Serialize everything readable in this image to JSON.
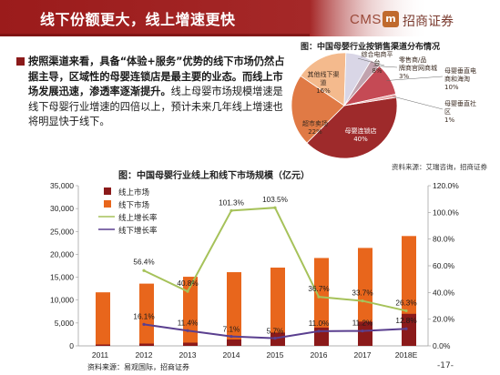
{
  "header": {
    "title": "线下份额更大，线上增速更快",
    "title_bg": "#9b1b1b",
    "logo_text": "CMS",
    "logo_badge": "m",
    "logo_name": "招商证券"
  },
  "bullet": {
    "part1_bold": "按照渠道来看，具备“体验+服务”优势的线下市场仍然占据主导，区域性的母婴连锁店是最主要的业态。而线上市场发展迅速，渗透率逐渐提升。",
    "part2": "线上母婴市场规模增速是线下母婴行业增速的四倍以上，预计未来几年线上增速也将明显快于线下。"
  },
  "pie": {
    "title": "图：中国母婴行业按销售渠道分布情况",
    "source": "资料来源：艾瑞咨询，招商证券",
    "chart_data": {
      "type": "pie",
      "title": "图：中国母婴行业按销售渠道分布情况",
      "slices": [
        {
          "label": "母婴连锁店",
          "value": 40,
          "display": "40%",
          "color": "#9e2a2b"
        },
        {
          "label": "超市卖场",
          "value": 22,
          "display": "22%",
          "color": "#e07a45"
        },
        {
          "label": "其他线下渠道",
          "value": 16,
          "display": "16%",
          "color": "#f4ba8d"
        },
        {
          "label": "综合电商平台",
          "value": 8,
          "display": "8%",
          "color": "#d9d6e6"
        },
        {
          "label": "零售商/品牌商官网商城",
          "value": 3,
          "display": "3%",
          "color": "#c1a3ae"
        },
        {
          "label": "母婴垂直电商和海淘",
          "value": 10,
          "display": "10%",
          "color": "#c54a55"
        },
        {
          "label": "母婴垂直社区",
          "value": 1,
          "display": "1%",
          "color": "#e9a7a7"
        }
      ]
    }
  },
  "bars": {
    "title": "图：中国母婴行业线上和线下市场规模（亿元）",
    "source": "资料来源：易观国际，招商证券",
    "legend": {
      "online": "线上市场",
      "offline": "线下市场",
      "online_growth": "线上增长率",
      "offline_growth": "线下增长率"
    },
    "chart_data": {
      "type": "bar",
      "title": "图：中国母婴行业线上和线下市场规模（亿元）",
      "categories": [
        "2011",
        "2012",
        "2013",
        "2014",
        "2015",
        "2016",
        "2017",
        "2018E"
      ],
      "left_axis": {
        "min": 0,
        "max": 35000,
        "ticks": [
          "0",
          "5,000",
          "10,000",
          "15,000",
          "20,000",
          "25,000",
          "30,000",
          "35,000"
        ]
      },
      "right_axis": {
        "min": 0,
        "max": 120,
        "ticks": [
          "0.0%",
          "20.0%",
          "40.0%",
          "60.0%",
          "80.0%",
          "100.0%",
          "120.0%"
        ]
      },
      "series": [
        {
          "name": "线上市场",
          "kind": "bar",
          "axis": "left",
          "color": "#8b1a1a",
          "values": [
            300,
            500,
            700,
            1400,
            2900,
            4000,
            5300,
            7000
          ]
        },
        {
          "name": "线下市场",
          "kind": "bar",
          "axis": "left",
          "color": "#e8661c",
          "values": [
            11700,
            13600,
            15100,
            16100,
            17100,
            19200,
            21400,
            24000
          ]
        },
        {
          "name": "线上增长率",
          "kind": "line",
          "axis": "right",
          "color": "#a6c25a",
          "values": [
            null,
            56.4,
            40.8,
            101.3,
            103.5,
            36.7,
            33.7,
            26.3
          ],
          "labels": [
            "",
            "56.4%",
            "40.8%",
            "101.3%",
            "103.5%",
            "36.7%",
            "33.7%",
            "26.3%"
          ]
        },
        {
          "name": "线下增长率",
          "kind": "line",
          "axis": "right",
          "color": "#5a3f8f",
          "values": [
            null,
            16.1,
            11.4,
            7.1,
            5.7,
            11.0,
            11.2,
            12.8
          ],
          "labels": [
            "",
            "16.1%",
            "11.4%",
            "7.1%",
            "5.7%",
            "11.0%",
            "11.2%",
            "12.8%"
          ]
        }
      ]
    }
  },
  "page": {
    "number": "-17-"
  }
}
